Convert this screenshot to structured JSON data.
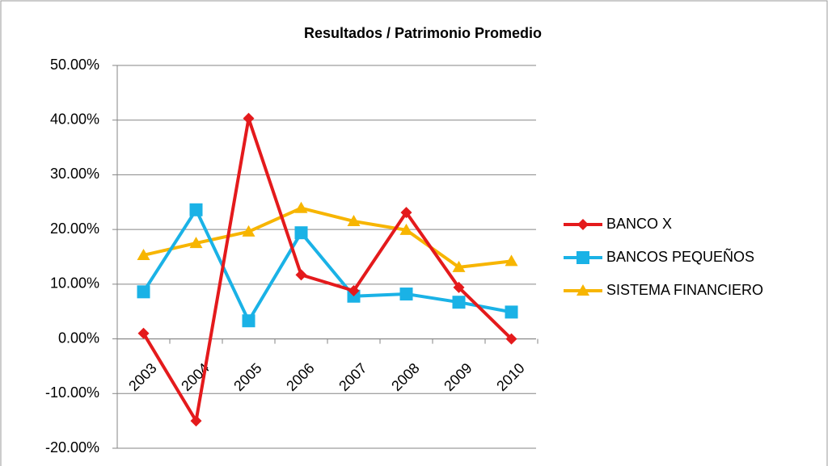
{
  "chart_data": {
    "type": "line",
    "title": "Resultados  / Patrimonio Promedio",
    "categories": [
      "2003",
      "2004",
      "2005",
      "2006",
      "2007",
      "2008",
      "2009",
      "2010"
    ],
    "series": [
      {
        "name": "BANCO X",
        "color": "#e41a1c",
        "marker": "diamond",
        "values": [
          1.0,
          -15.0,
          40.3,
          11.7,
          8.8,
          23.1,
          9.4,
          0.0
        ]
      },
      {
        "name": "BANCOS PEQUEÑOS",
        "color": "#1ab2e6",
        "marker": "square",
        "values": [
          8.6,
          23.6,
          3.3,
          19.4,
          7.8,
          8.2,
          6.7,
          4.9
        ]
      },
      {
        "name": "SISTEMA FINANCIERO",
        "color": "#f7b500",
        "marker": "triangle",
        "values": [
          15.3,
          17.5,
          19.6,
          23.9,
          21.5,
          19.9,
          13.1,
          14.2
        ]
      }
    ],
    "ylim": [
      -20,
      50
    ],
    "yticks": [
      {
        "value": -20,
        "label": "-20.00%"
      },
      {
        "value": -10,
        "label": "-10.00%"
      },
      {
        "value": 0,
        "label": "0.00%"
      },
      {
        "value": 10,
        "label": "10.00%"
      },
      {
        "value": 20,
        "label": "20.00%"
      },
      {
        "value": 30,
        "label": "30.00%"
      },
      {
        "value": 40,
        "label": "40.00%"
      },
      {
        "value": 50,
        "label": "50.00%"
      }
    ],
    "grid": true,
    "legend": "right"
  }
}
